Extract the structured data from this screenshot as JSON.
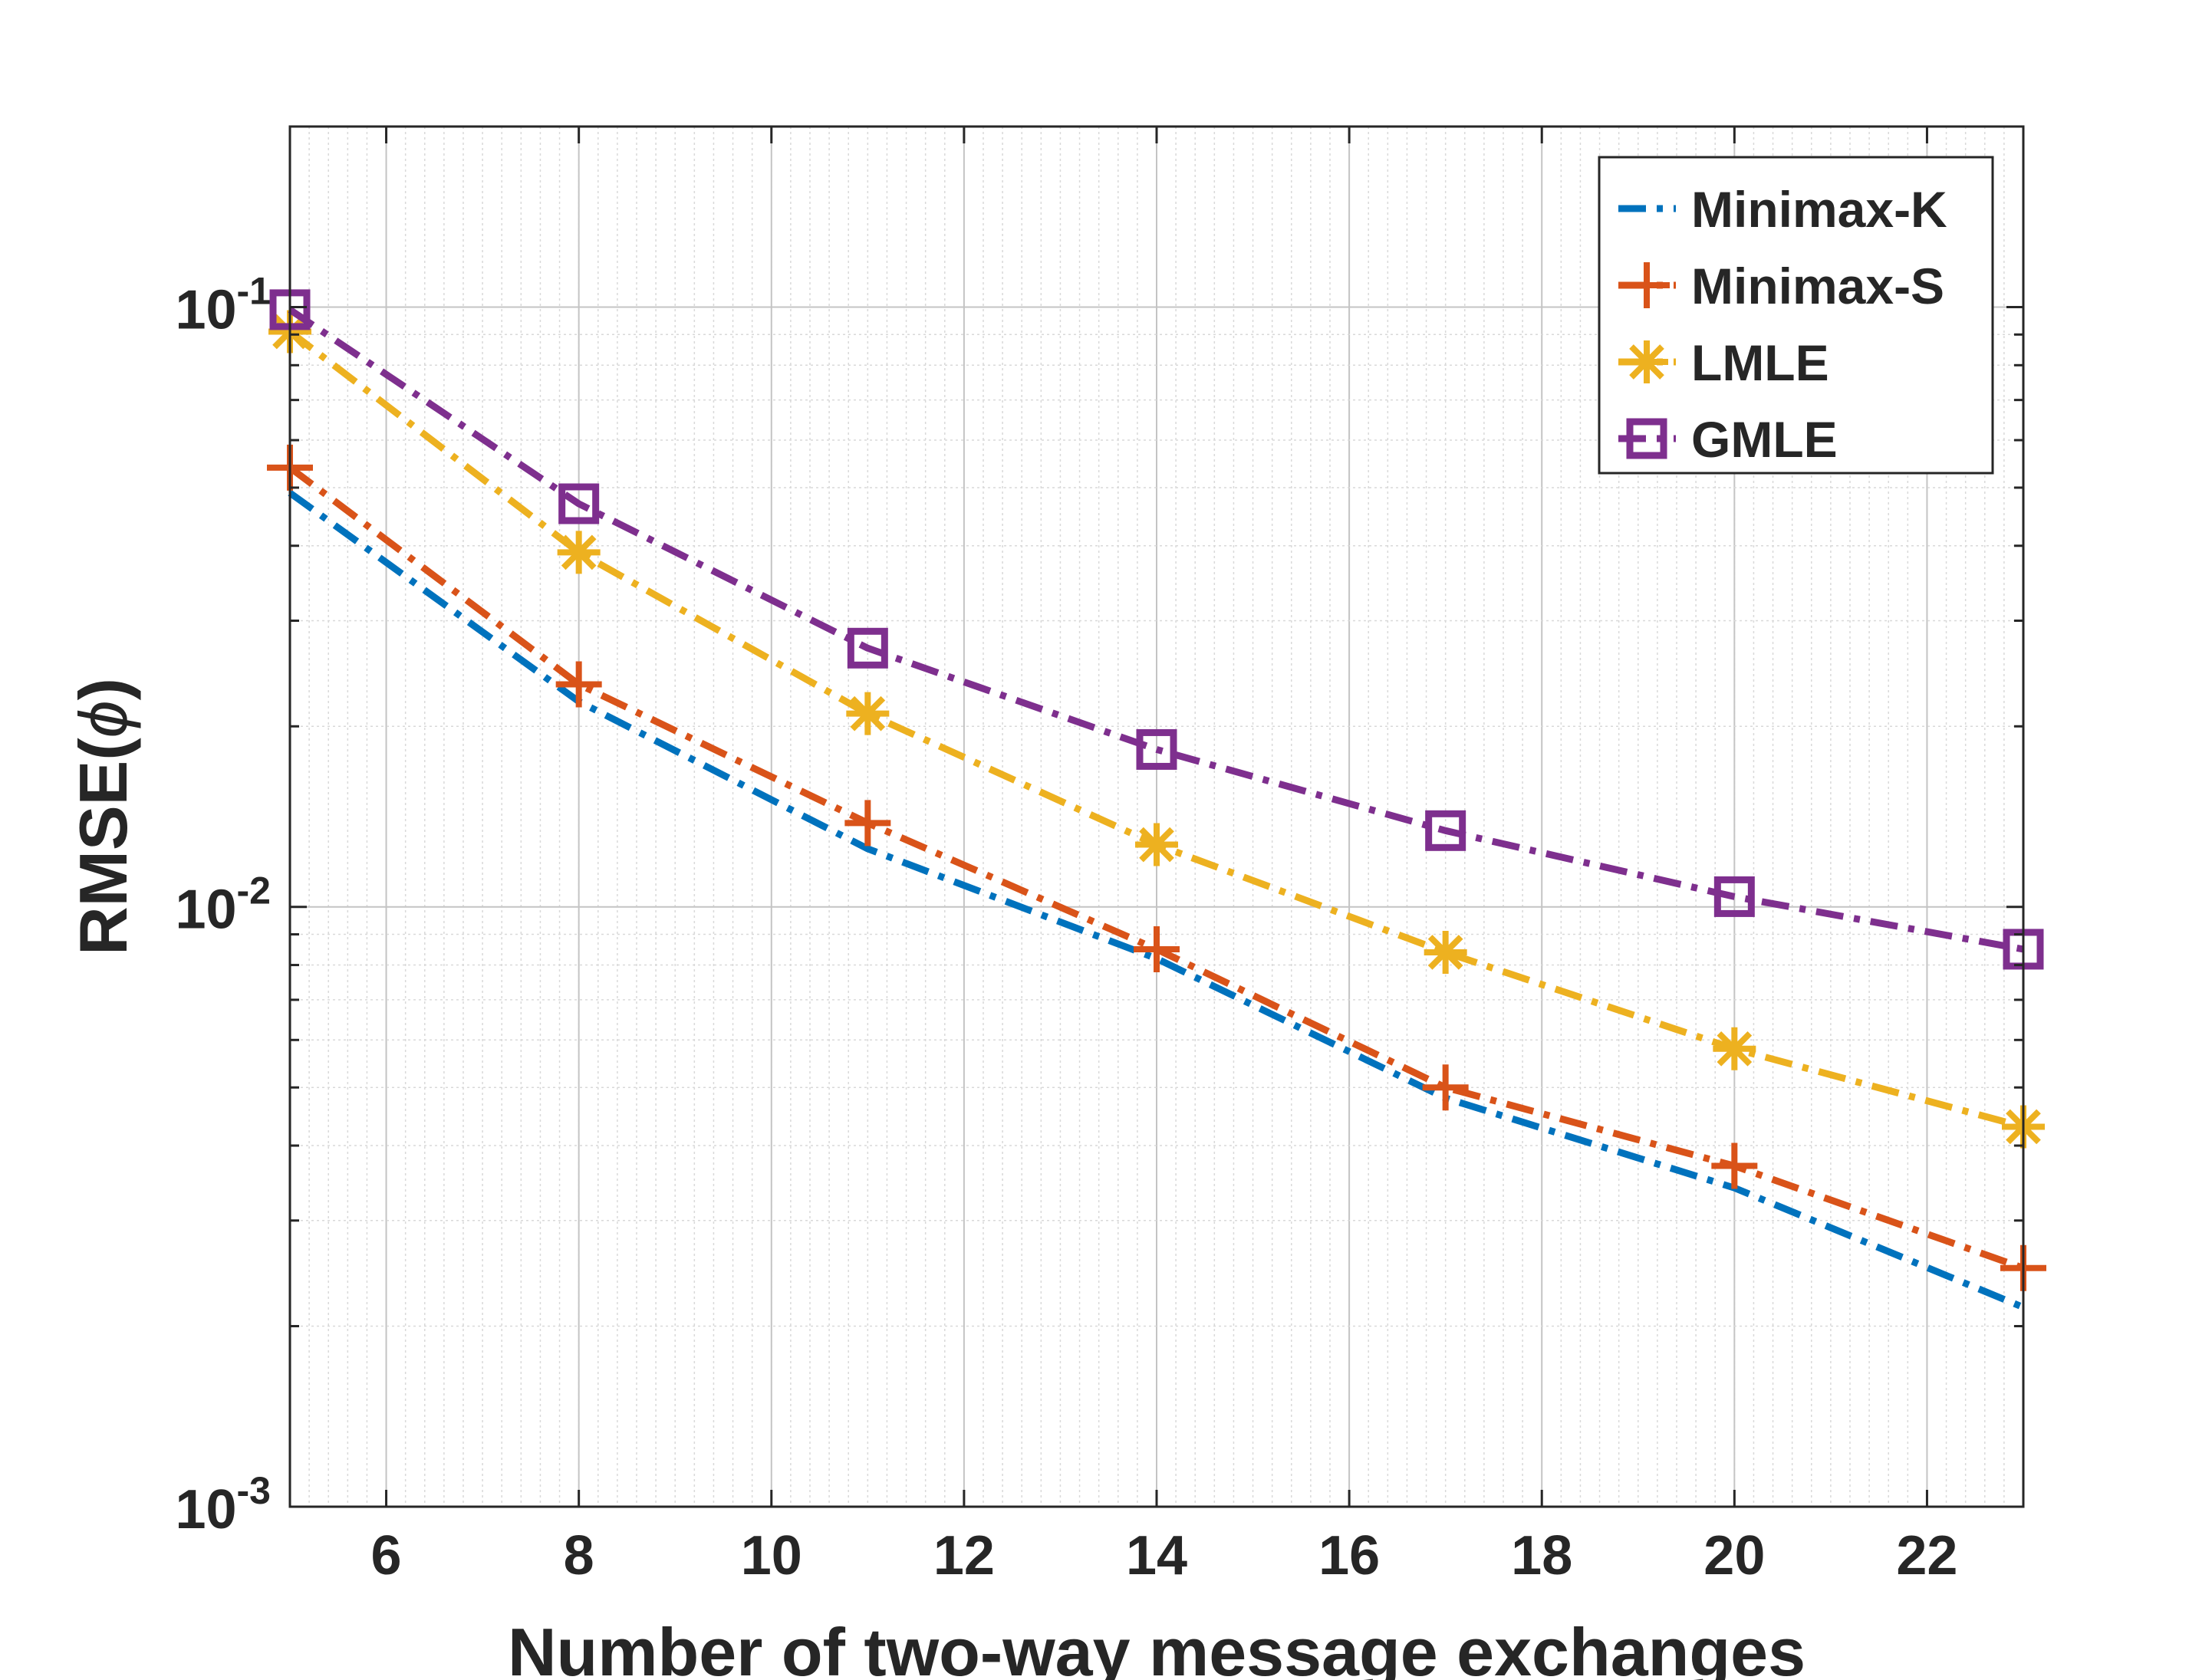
{
  "chart_data": {
    "type": "line",
    "title": "",
    "xlabel": "Number of two-way message exchanges",
    "ylabel": "RMSE(",
    "ylabel_symbol": "ϕ",
    "ylabel_close": ")",
    "xscale": "linear",
    "yscale": "log",
    "xlim": [
      5,
      23
    ],
    "ylim": [
      0.001,
      0.2
    ],
    "x_ticks": [
      6,
      8,
      10,
      12,
      14,
      16,
      18,
      20,
      22
    ],
    "y_ticks": [
      {
        "value": 0.001,
        "base": "10",
        "exp": "-3"
      },
      {
        "value": 0.01,
        "base": "10",
        "exp": "-2"
      },
      {
        "value": 0.1,
        "base": "10",
        "exp": "-1"
      }
    ],
    "grid": true,
    "legend_position": "top-right",
    "x": [
      5,
      8,
      11,
      14,
      17,
      20,
      23
    ],
    "series": [
      {
        "name": "Minimax-K",
        "color": "#0072BD",
        "marker": "none",
        "values": [
          0.049,
          0.022,
          0.0125,
          0.0082,
          0.0048,
          0.0034,
          0.00215
        ]
      },
      {
        "name": "Minimax-S",
        "color": "#D95319",
        "marker": "plus",
        "values": [
          0.054,
          0.0235,
          0.0138,
          0.0085,
          0.005,
          0.0037,
          0.0025
        ]
      },
      {
        "name": "LMLE",
        "color": "#EDB120",
        "marker": "asterisk",
        "values": [
          0.091,
          0.039,
          0.021,
          0.0127,
          0.0084,
          0.0058,
          0.0043
        ]
      },
      {
        "name": "GMLE",
        "color": "#7E2F8E",
        "marker": "square",
        "values": [
          0.099,
          0.047,
          0.027,
          0.0183,
          0.0134,
          0.0104,
          0.0085
        ]
      }
    ]
  }
}
